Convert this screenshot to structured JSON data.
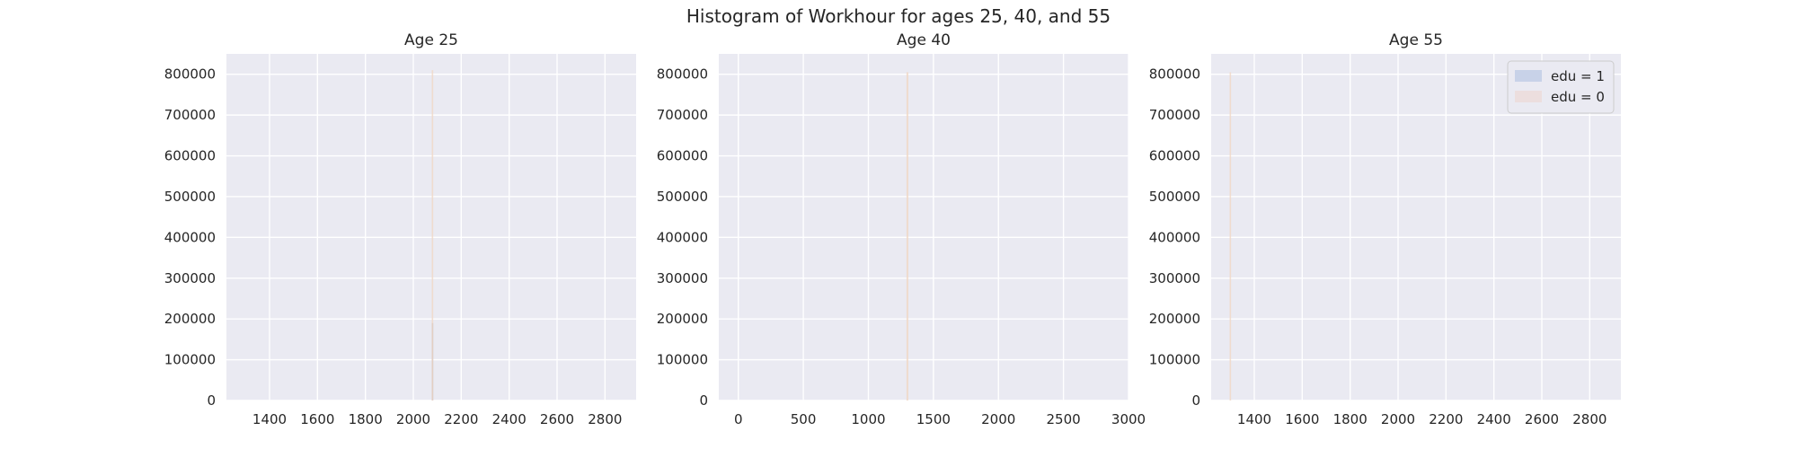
{
  "figure": {
    "suptitle": "Histogram of Workhour for ages 25, 40, and 55"
  },
  "legend": {
    "placement": "upper-right",
    "entries": [
      {
        "label": "edu = 1",
        "color": "#c8d2e8"
      },
      {
        "label": "edu = 0",
        "color": "#ecdede"
      }
    ]
  },
  "colors": {
    "panel_bg": "#eaeaf2",
    "grid": "#ffffff",
    "edu1_bar": "#a9a9b9",
    "edu0_bar": "#f0d7c4"
  },
  "chart_data": [
    {
      "type": "bar",
      "title": "Age 25",
      "xlabel": "",
      "ylabel": "",
      "xlim": [
        1220,
        2930
      ],
      "ylim": [
        0,
        850000
      ],
      "xticks": [
        1400,
        1600,
        1800,
        2000,
        2200,
        2400,
        2600,
        2800
      ],
      "yticks": [
        0,
        100000,
        200000,
        300000,
        400000,
        500000,
        600000,
        700000,
        800000
      ],
      "grid": true,
      "series": [
        {
          "name": "edu = 1",
          "bars": [
            {
              "x": 2080,
              "width": 6,
              "value": 190000
            }
          ]
        },
        {
          "name": "edu = 0",
          "bars": [
            {
              "x": 2080,
              "width": 6,
              "value": 810000
            }
          ]
        }
      ]
    },
    {
      "type": "bar",
      "title": "Age 40",
      "xlabel": "",
      "ylabel": "",
      "xlim": [
        -150,
        3000
      ],
      "ylim": [
        0,
        850000
      ],
      "xticks": [
        0,
        500,
        1000,
        1500,
        2000,
        2500,
        3000
      ],
      "yticks": [
        0,
        100000,
        200000,
        300000,
        400000,
        500000,
        600000,
        700000,
        800000
      ],
      "grid": true,
      "series": [
        {
          "name": "edu = 1",
          "bars": [
            {
              "x": 1300,
              "width": 14,
              "value": 0
            }
          ]
        },
        {
          "name": "edu = 0",
          "bars": [
            {
              "x": 1300,
              "width": 14,
              "value": 805000
            }
          ]
        }
      ]
    },
    {
      "type": "bar",
      "title": "Age 55",
      "xlabel": "",
      "ylabel": "",
      "xlim": [
        1220,
        2930
      ],
      "ylim": [
        0,
        850000
      ],
      "xticks": [
        1400,
        1600,
        1800,
        2000,
        2200,
        2400,
        2600,
        2800
      ],
      "yticks": [
        0,
        100000,
        200000,
        300000,
        400000,
        500000,
        600000,
        700000,
        800000
      ],
      "grid": true,
      "series": [
        {
          "name": "edu = 1",
          "bars": [
            {
              "x": 1300,
              "width": 6,
              "value": 0
            }
          ]
        },
        {
          "name": "edu = 0",
          "bars": [
            {
              "x": 1300,
              "width": 6,
              "value": 805000
            }
          ]
        }
      ]
    }
  ]
}
